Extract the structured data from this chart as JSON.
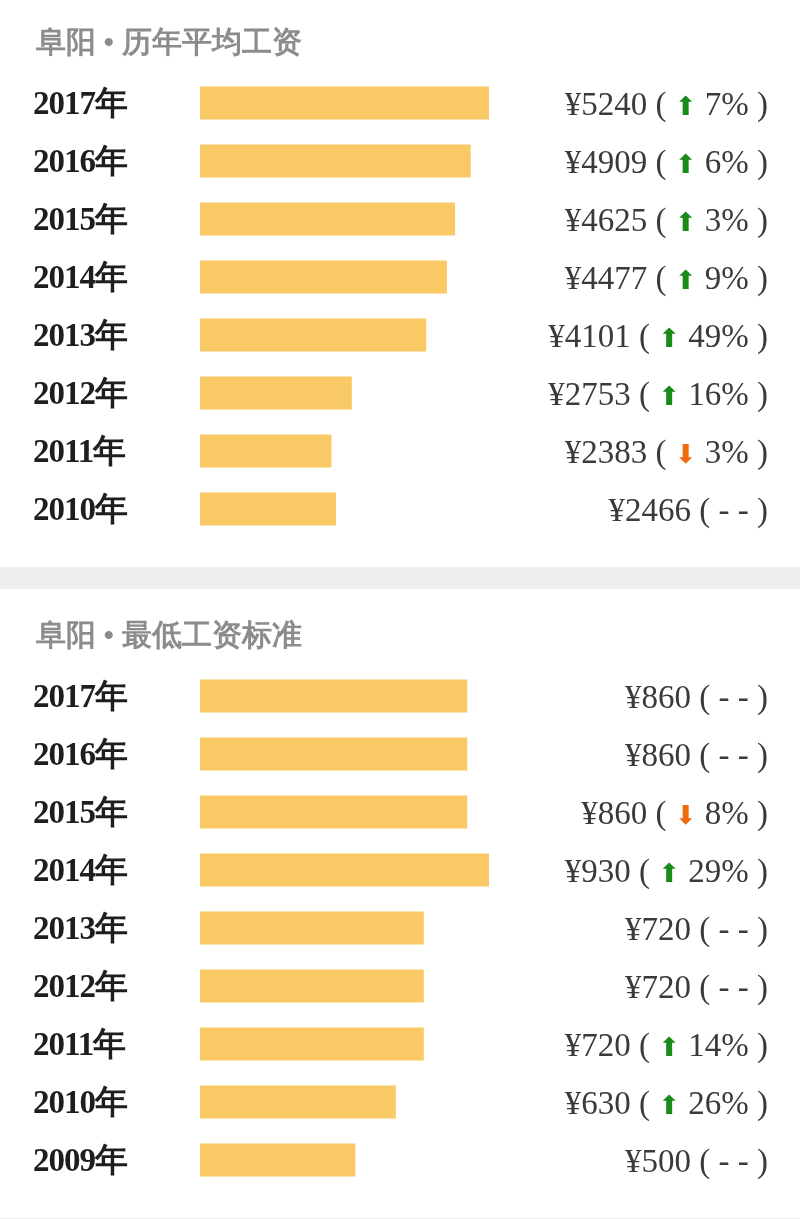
{
  "chart_data": [
    {
      "type": "bar",
      "orientation": "horizontal",
      "title": "阜阳 • 历年平均工资",
      "categories": [
        "2017年",
        "2016年",
        "2015年",
        "2014年",
        "2013年",
        "2012年",
        "2011年",
        "2010年"
      ],
      "values": [
        5240,
        4909,
        4625,
        4477,
        4101,
        2753,
        2383,
        2466
      ],
      "color": "#f9c966",
      "value_labels": [
        "¥5240 ( ⬆ 7% )",
        "¥4909 ( ⬆ 6% )",
        "¥4625 ( ⬆ 3% )",
        "¥4477 ( ⬆ 9% )",
        "¥4101 ( ⬆ 49% )",
        "¥2753 ( ⬆ 16% )",
        "¥2383 ( ⬇ 3% )",
        "¥2466 ( - - )"
      ]
    },
    {
      "type": "bar",
      "orientation": "horizontal",
      "title": "阜阳 • 最低工资标准",
      "categories": [
        "2017年",
        "2016年",
        "2015年",
        "2014年",
        "2013年",
        "2012年",
        "2011年",
        "2010年",
        "2009年"
      ],
      "values": [
        860,
        860,
        860,
        930,
        720,
        720,
        720,
        630,
        500
      ],
      "color": "#f9c966",
      "value_labels": [
        "¥860 ( - - )",
        "¥860 ( - - )",
        "¥860 ( ⬇ 8% )",
        "¥930 ( ⬆ 29% )",
        "¥720 ( - - )",
        "¥720 ( - - )",
        "¥720 ( ⬆ 14% )",
        "¥630 ( ⬆ 26% )",
        "¥500 ( - - )"
      ]
    }
  ]
}
